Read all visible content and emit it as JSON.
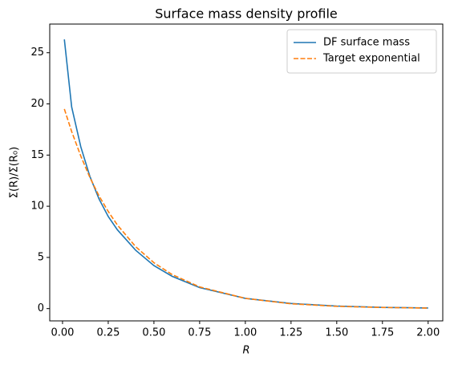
{
  "chart_data": {
    "type": "line",
    "title": "Surface mass density profile",
    "xlabel": "R",
    "ylabel": "Σ(R)/Σ(R₀)",
    "x": [
      0.01,
      0.05,
      0.1,
      0.15,
      0.2,
      0.25,
      0.3,
      0.4,
      0.5,
      0.6,
      0.75,
      1.0,
      1.25,
      1.5,
      1.75,
      2.0
    ],
    "series": [
      {
        "name": "DF surface mass",
        "color": "#1f77b4",
        "dash": "solid",
        "values": [
          26.3,
          19.7,
          15.8,
          12.9,
          10.7,
          9.0,
          7.7,
          5.7,
          4.2,
          3.15,
          2.05,
          1.0,
          0.5,
          0.25,
          0.12,
          0.06
        ]
      },
      {
        "name": "Target exponential",
        "color": "#ff7f0e",
        "dash": "dashed",
        "values": [
          19.5,
          17.3,
          14.9,
          12.8,
          11.0,
          9.49,
          8.17,
          6.05,
          4.48,
          3.32,
          2.12,
          1.0,
          0.47,
          0.22,
          0.11,
          0.05
        ]
      }
    ],
    "xlim": [
      -0.07,
      2.08
    ],
    "ylim": [
      -1.2,
      27.8
    ],
    "xticks": [
      {
        "value": 0,
        "label": "0.00"
      },
      {
        "value": 0.25,
        "label": "0.25"
      },
      {
        "value": 0.5,
        "label": "0.50"
      },
      {
        "value": 0.75,
        "label": "0.75"
      },
      {
        "value": 1,
        "label": "1.00"
      },
      {
        "value": 1.25,
        "label": "1.25"
      },
      {
        "value": 1.5,
        "label": "1.50"
      },
      {
        "value": 1.75,
        "label": "1.75"
      },
      {
        "value": 2,
        "label": "2.00"
      }
    ],
    "yticks": [
      0,
      5,
      10,
      15,
      20,
      25
    ],
    "grid": false,
    "legend": "upper right"
  }
}
